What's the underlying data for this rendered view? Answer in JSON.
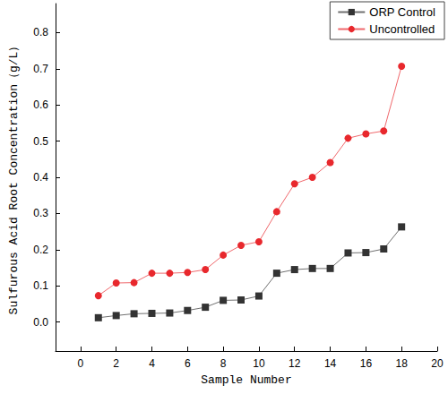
{
  "chart_data": {
    "type": "line",
    "x_label": "Sample Number",
    "y_label": "Sulfurous Acid Root Concentration（g/L）",
    "xlim": [
      -1.4,
      20
    ],
    "xticks": [
      0,
      2,
      4,
      6,
      8,
      10,
      12,
      14,
      16,
      18,
      20
    ],
    "ylim": [
      -0.08,
      0.88
    ],
    "yticks": [
      {
        "value": 0,
        "label": "0.0"
      },
      0.1,
      0.2,
      0.3,
      0.4,
      0.5,
      0.6,
      0.7,
      0.8
    ],
    "grid": false,
    "legend": "top-right",
    "x": [
      1,
      2,
      3,
      4,
      5,
      6,
      7,
      8,
      9,
      10,
      11,
      12,
      13,
      14,
      15,
      16,
      17,
      18
    ],
    "series": [
      {
        "name": "ORP Control",
        "color": "#333333",
        "marker": "square",
        "line_style": "solid",
        "values": [
          0.012,
          0.018,
          0.023,
          0.024,
          0.025,
          0.032,
          0.041,
          0.06,
          0.061,
          0.072,
          0.135,
          0.145,
          0.148,
          0.148,
          0.191,
          0.192,
          0.202,
          0.263
        ]
      },
      {
        "name": "Uncontrolled",
        "color": "#e8282d",
        "marker": "circle",
        "line_style": "solid",
        "values": [
          0.073,
          0.108,
          0.109,
          0.135,
          0.135,
          0.137,
          0.145,
          0.185,
          0.212,
          0.222,
          0.305,
          0.382,
          0.4,
          0.441,
          0.508,
          0.52,
          0.528,
          0.707
        ]
      }
    ]
  }
}
